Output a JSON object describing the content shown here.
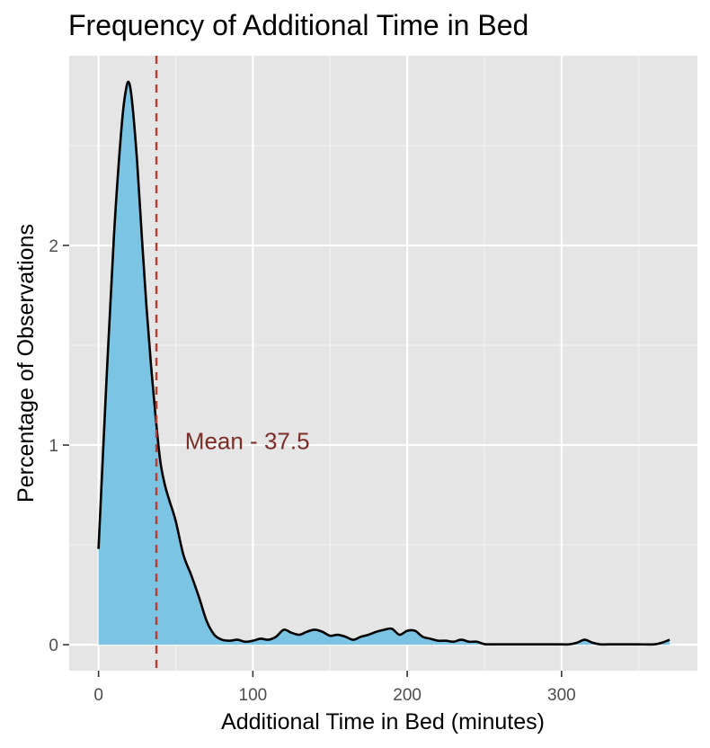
{
  "chart_data": {
    "type": "area",
    "title": "Frequency of Additional Time in Bed",
    "xlabel": "Additional Time in Bed (minutes)",
    "ylabel": "Percentage of Observations",
    "xlim": [
      -19,
      388
    ],
    "ylim": [
      -0.13,
      2.95
    ],
    "x_ticks": [
      0,
      100,
      200,
      300
    ],
    "x_tick_labels": [
      "0",
      "100",
      "200",
      "300"
    ],
    "y_ticks": [
      0,
      1,
      2
    ],
    "y_tick_labels": [
      "0",
      "1",
      "2"
    ],
    "grid": true,
    "legend": "none",
    "fill_color": "#7bc4e4",
    "line_color": "#000000",
    "mean_line": {
      "x": 37.5,
      "color": "#c0392b",
      "style": "dashed"
    },
    "annotation": {
      "text": "Mean - 37.5",
      "x": 56,
      "y": 1.02,
      "color": "#7b2d26"
    },
    "series": [
      {
        "x": [
          0,
          5,
          10,
          15,
          18,
          20,
          22,
          25,
          28,
          31,
          34,
          37,
          40,
          43,
          46,
          50,
          55,
          60,
          65,
          70,
          75,
          80,
          85,
          90,
          95,
          100,
          105,
          110,
          115,
          120,
          125,
          130,
          135,
          140,
          145,
          150,
          155,
          160,
          165,
          170,
          175,
          180,
          185,
          190,
          195,
          200,
          205,
          210,
          215,
          220,
          225,
          230,
          235,
          240,
          245,
          250,
          255,
          260,
          270,
          280,
          290,
          300,
          305,
          310,
          315,
          320,
          325,
          330,
          340,
          350,
          360,
          365,
          370
        ],
        "y": [
          0.48,
          1.3,
          2.05,
          2.6,
          2.79,
          2.81,
          2.7,
          2.42,
          2.05,
          1.7,
          1.4,
          1.14,
          0.92,
          0.8,
          0.72,
          0.62,
          0.45,
          0.35,
          0.24,
          0.12,
          0.05,
          0.025,
          0.02,
          0.025,
          0.015,
          0.02,
          0.03,
          0.025,
          0.04,
          0.075,
          0.06,
          0.05,
          0.065,
          0.075,
          0.065,
          0.045,
          0.05,
          0.04,
          0.025,
          0.04,
          0.05,
          0.065,
          0.075,
          0.08,
          0.05,
          0.07,
          0.07,
          0.04,
          0.03,
          0.02,
          0.02,
          0.015,
          0.025,
          0.015,
          0.015,
          0.003,
          0.002,
          0.002,
          0.002,
          0.002,
          0.002,
          0.002,
          0.002,
          0.01,
          0.025,
          0.01,
          0.002,
          0.002,
          0.002,
          0.002,
          0.002,
          0.01,
          0.025
        ]
      }
    ]
  }
}
